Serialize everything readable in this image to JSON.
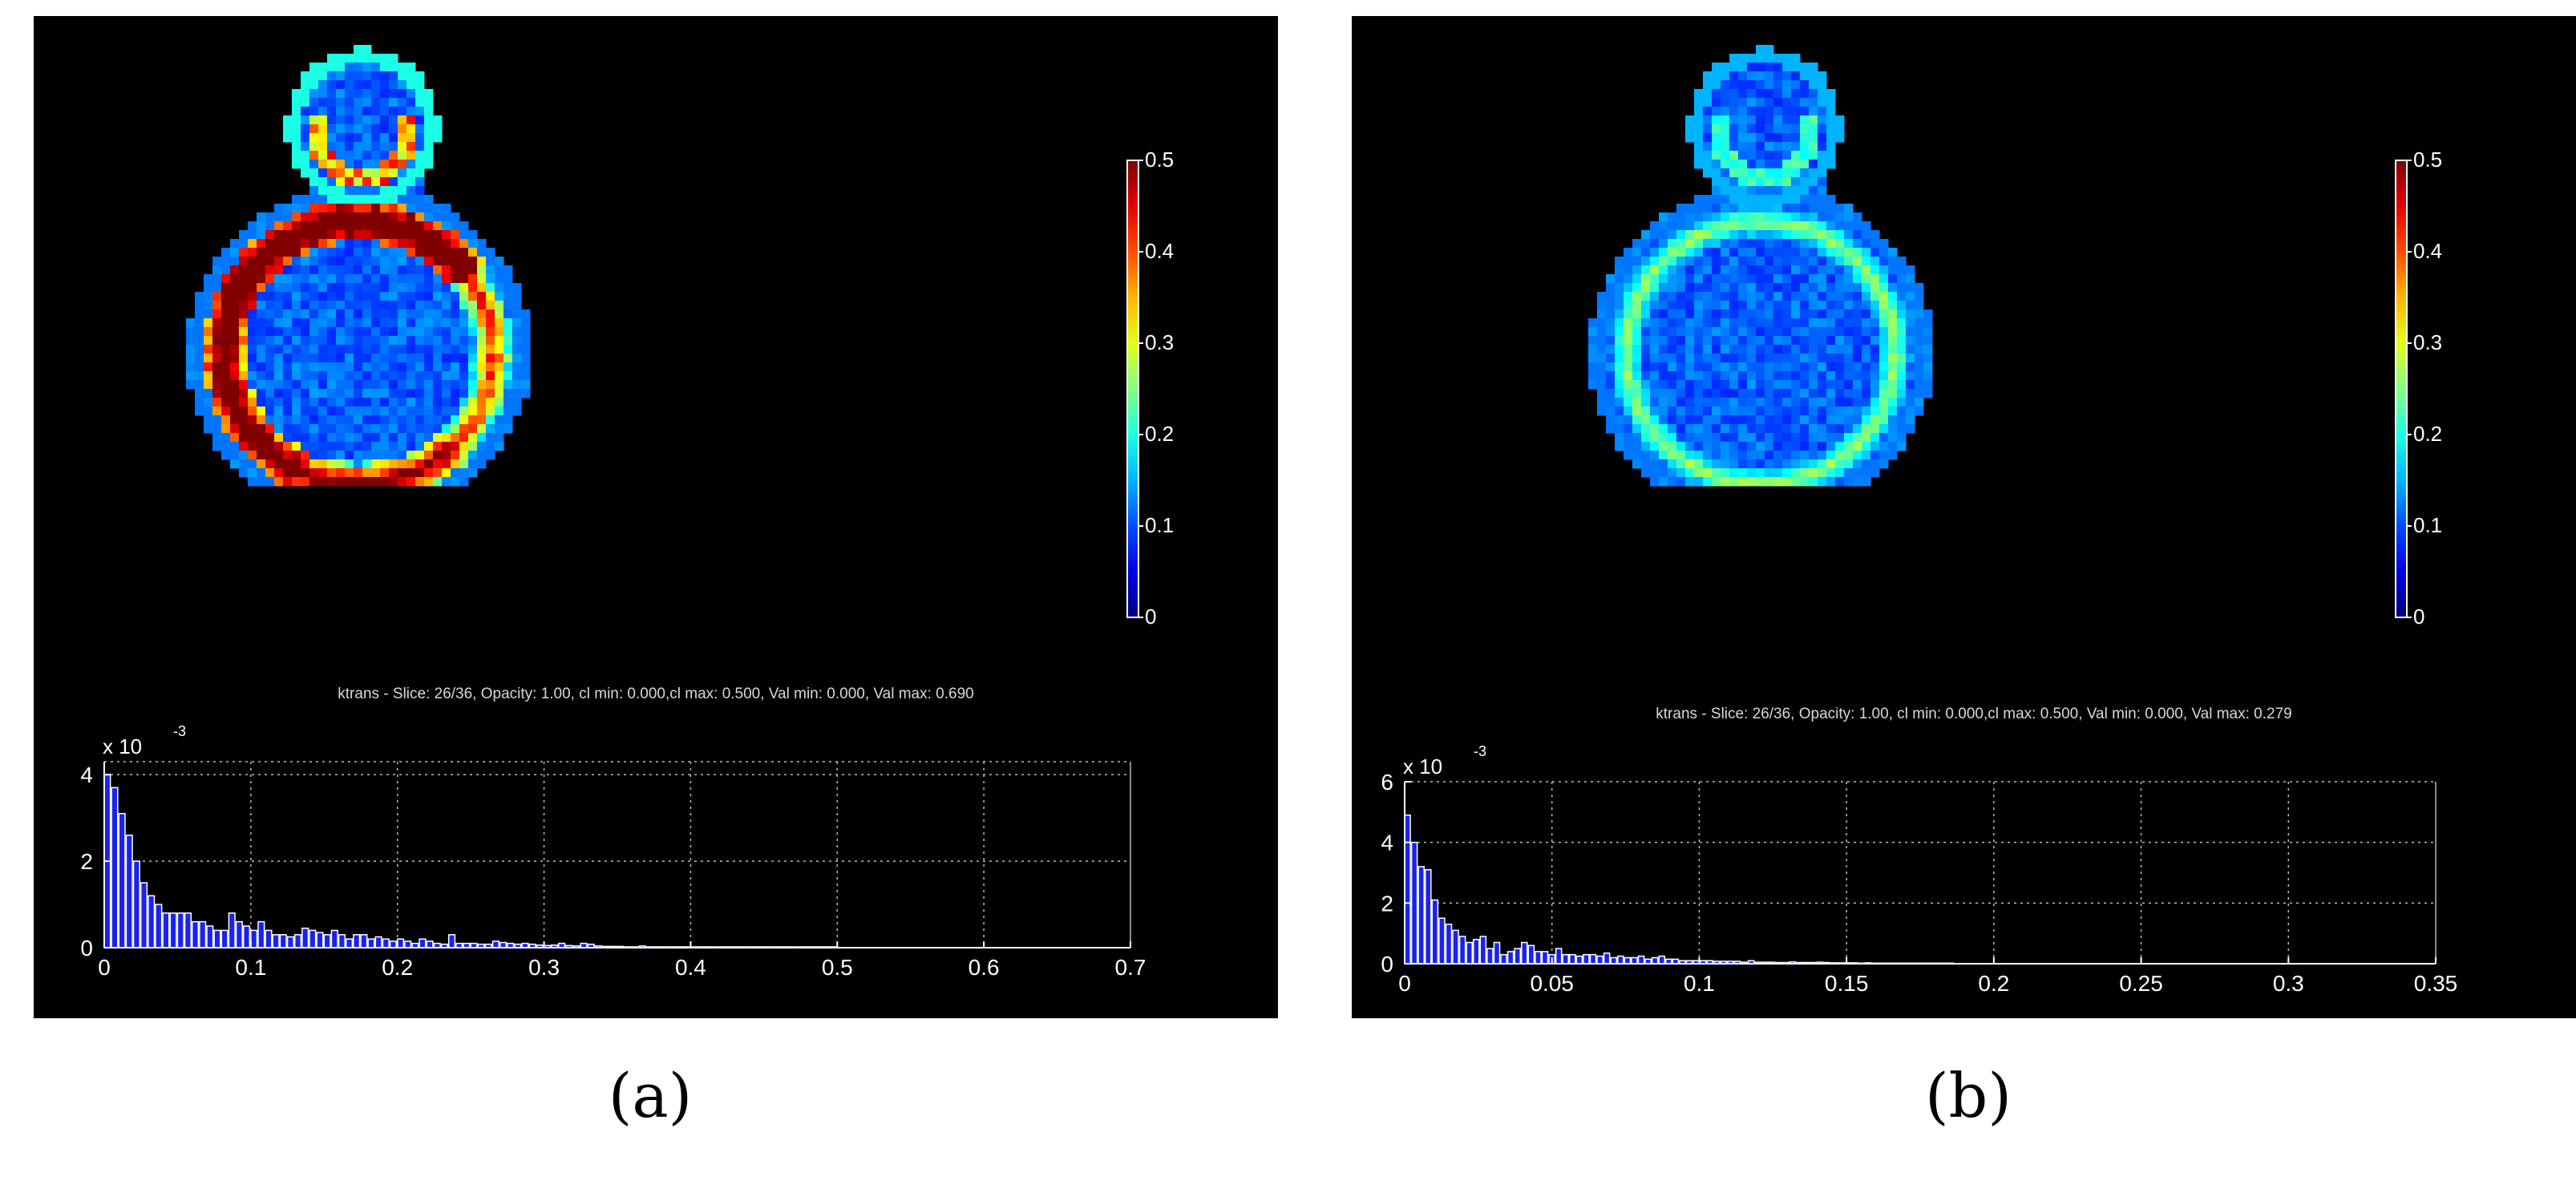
{
  "panels": [
    {
      "id": "a",
      "label": "(a)",
      "caption": "ktrans - Slice: 26/36, Opacity: 1.00, cl min: 0.000,cl max: 0.500, Val min: 0.000, Val max: 0.690",
      "colorbar": {
        "min": 0,
        "max": 0.5,
        "ticks": [
          "0",
          "0.1",
          "0.2",
          "0.3",
          "0.4",
          "0.5"
        ]
      },
      "map_intensity": "high",
      "histogram": {
        "multiplier_label": "x 10",
        "exponent": "-3",
        "ylim": [
          0,
          4.3
        ],
        "yticks": [
          "0",
          "2",
          "4"
        ],
        "xlim": [
          0,
          0.7
        ],
        "xticks": [
          "0",
          "0.1",
          "0.2",
          "0.3",
          "0.4",
          "0.5",
          "0.6",
          "0.7"
        ],
        "values": [
          4.0,
          3.7,
          3.1,
          2.6,
          2.0,
          1.5,
          1.2,
          1.0,
          0.8,
          0.8,
          0.8,
          0.8,
          0.6,
          0.6,
          0.5,
          0.4,
          0.4,
          0.8,
          0.6,
          0.5,
          0.4,
          0.6,
          0.4,
          0.3,
          0.3,
          0.25,
          0.3,
          0.45,
          0.4,
          0.35,
          0.3,
          0.4,
          0.3,
          0.2,
          0.3,
          0.3,
          0.2,
          0.25,
          0.2,
          0.15,
          0.2,
          0.15,
          0.1,
          0.2,
          0.15,
          0.1,
          0.08,
          0.3,
          0.1,
          0.1,
          0.1,
          0.08,
          0.08,
          0.15,
          0.12,
          0.1,
          0.08,
          0.1,
          0.08,
          0.06,
          0.05,
          0.06,
          0.1,
          0.05,
          0.04,
          0.1,
          0.08,
          0.04,
          0.03,
          0.03,
          0.03,
          0.02,
          0.02,
          0.04,
          0.02,
          0.02,
          0.02,
          0.02,
          0.02,
          0.02,
          0.02,
          0.02,
          0.02,
          0.02,
          0.02,
          0.02,
          0.02,
          0.02,
          0.02,
          0.02,
          0.02,
          0.02,
          0.02,
          0.02,
          0.02,
          0.02,
          0.02,
          0.02,
          0.02,
          0.02
        ]
      }
    },
    {
      "id": "b",
      "label": "(b)",
      "caption": "ktrans - Slice: 26/36, Opacity: 1.00, cl min: 0.000,cl max: 0.500, Val min: 0.000, Val max: 0.279",
      "colorbar": {
        "min": 0,
        "max": 0.5,
        "ticks": [
          "0",
          "0.1",
          "0.2",
          "0.3",
          "0.4",
          "0.5"
        ]
      },
      "map_intensity": "low",
      "histogram": {
        "multiplier_label": "x 10",
        "exponent": "-3",
        "ylim": [
          0,
          6
        ],
        "yticks": [
          "0",
          "2",
          "4",
          "6"
        ],
        "xlim": [
          0,
          0.35
        ],
        "xticks": [
          "0",
          "0.05",
          "0.1",
          "0.15",
          "0.2",
          "0.25",
          "0.3",
          "0.35"
        ],
        "values": [
          4.9,
          4.0,
          3.2,
          3.1,
          2.1,
          1.5,
          1.3,
          1.1,
          0.9,
          0.7,
          0.8,
          0.9,
          0.5,
          0.7,
          0.3,
          0.4,
          0.5,
          0.7,
          0.6,
          0.4,
          0.4,
          0.3,
          0.5,
          0.3,
          0.3,
          0.25,
          0.3,
          0.3,
          0.25,
          0.35,
          0.2,
          0.25,
          0.2,
          0.2,
          0.25,
          0.15,
          0.2,
          0.25,
          0.15,
          0.15,
          0.1,
          0.1,
          0.1,
          0.1,
          0.1,
          0.08,
          0.08,
          0.08,
          0.08,
          0.05,
          0.1,
          0.05,
          0.05,
          0.05,
          0.04,
          0.04,
          0.06,
          0.04,
          0.04,
          0.04,
          0.05,
          0.04,
          0.03,
          0.03,
          0.03,
          0.03,
          0.02,
          0.03,
          0.02,
          0.02,
          0.02,
          0.02,
          0.02,
          0.02,
          0.02,
          0.02,
          0.02,
          0.02,
          0.02,
          0.02
        ]
      }
    }
  ]
}
